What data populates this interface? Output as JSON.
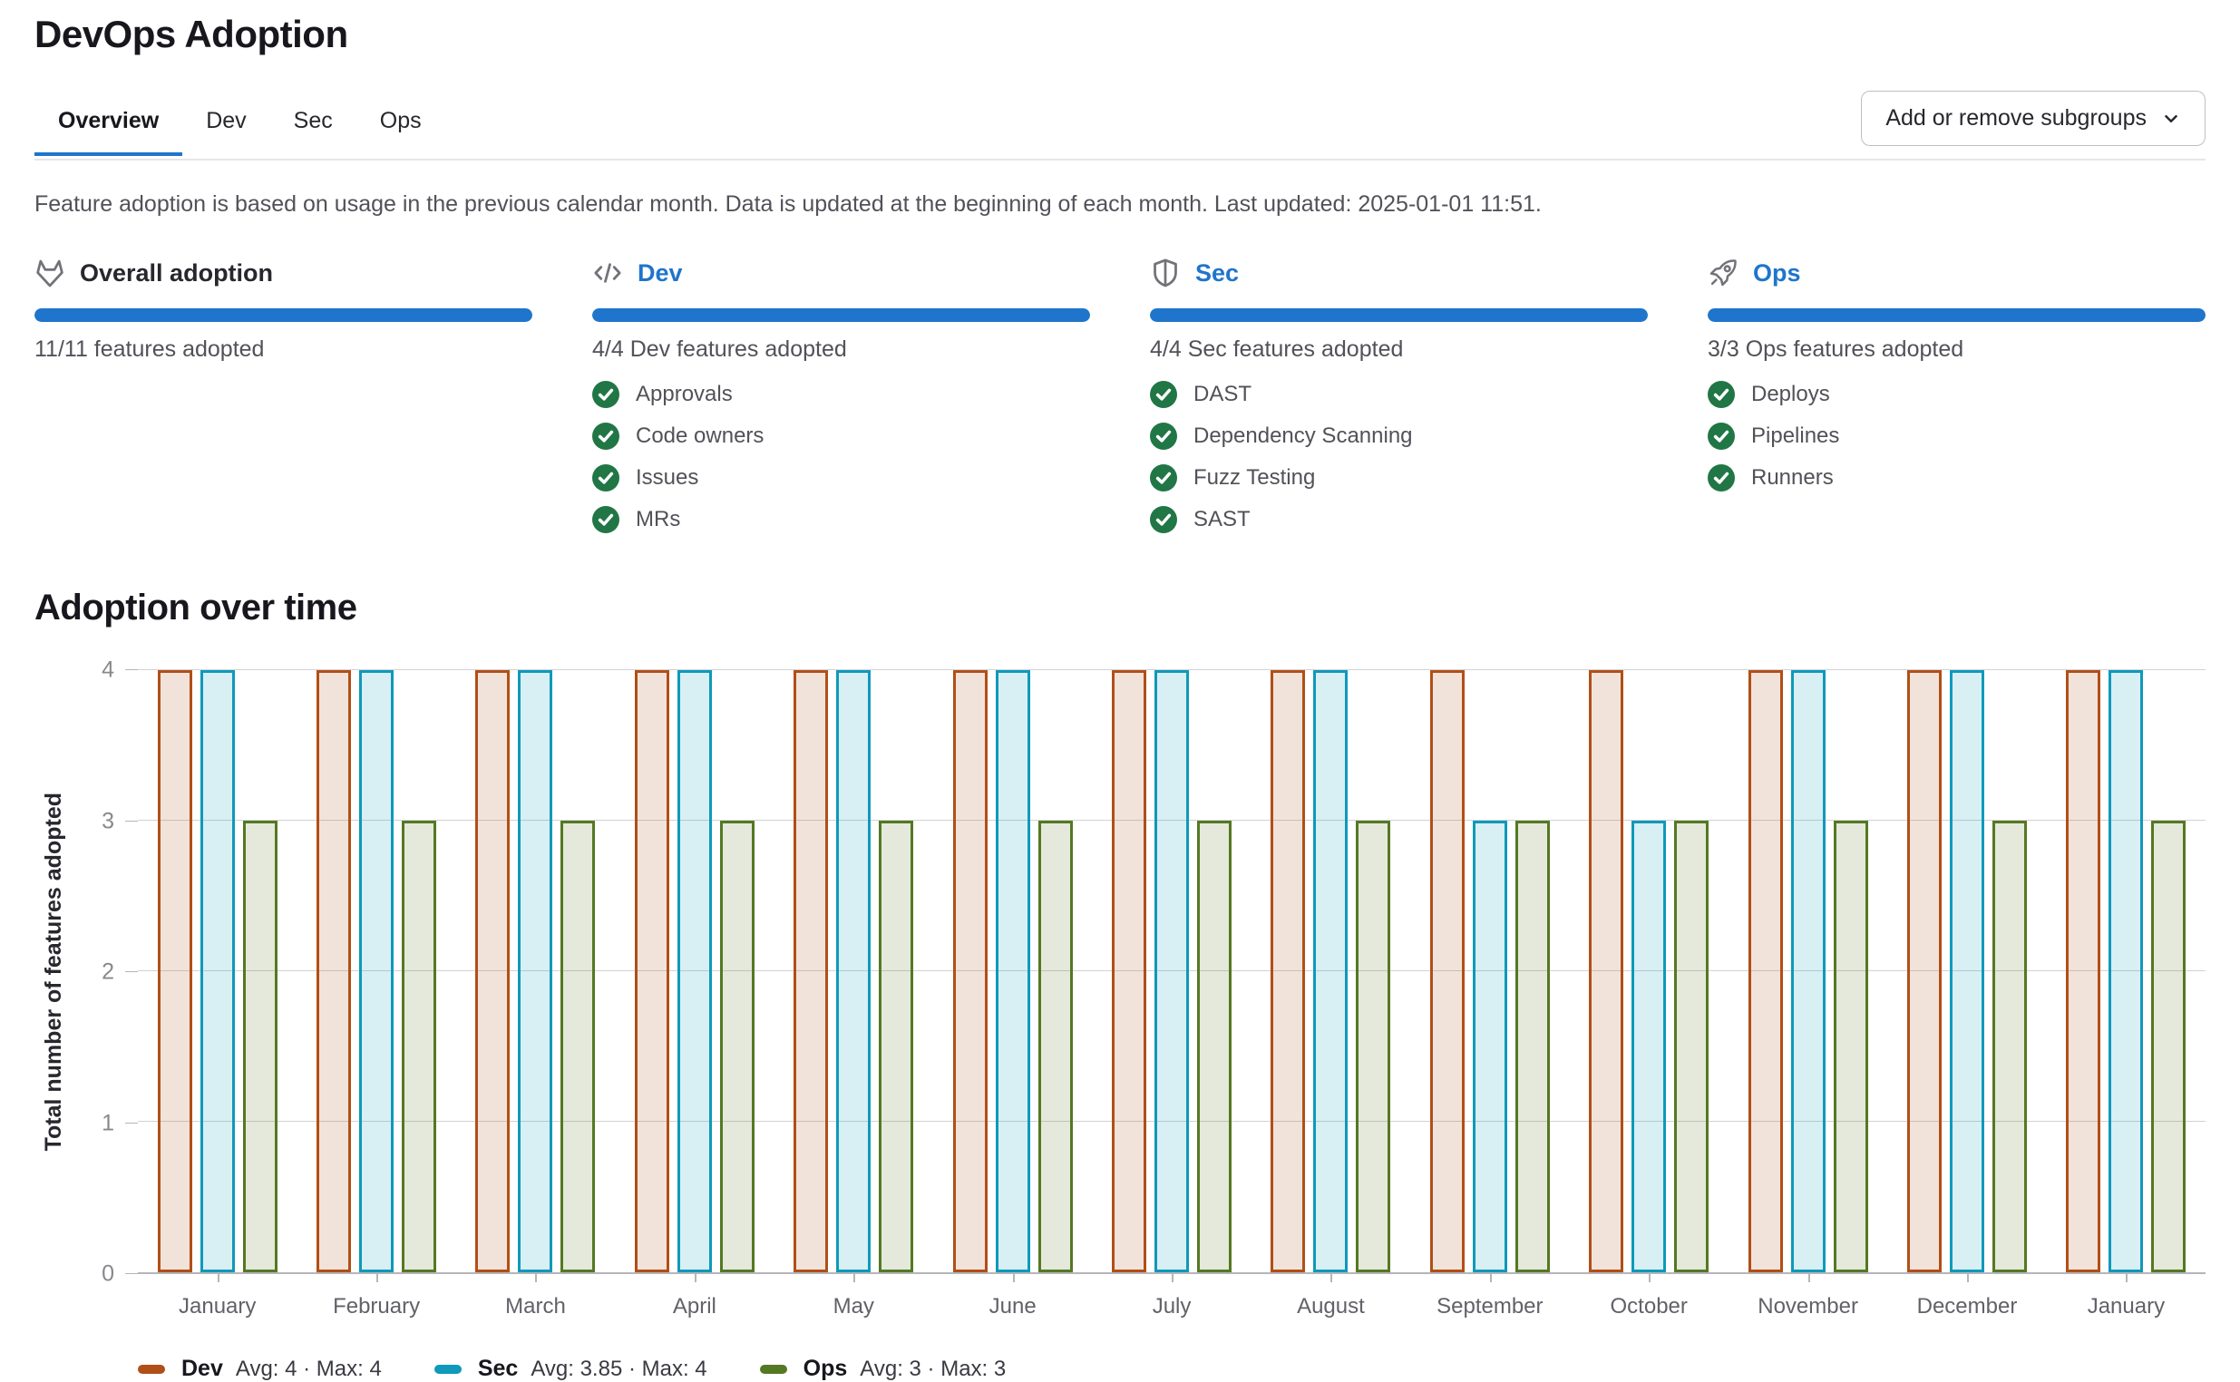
{
  "page": {
    "title": "DevOps Adoption"
  },
  "tabs": [
    {
      "label": "Overview",
      "active": true
    },
    {
      "label": "Dev",
      "active": false
    },
    {
      "label": "Sec",
      "active": false
    },
    {
      "label": "Ops",
      "active": false
    }
  ],
  "toolbar": {
    "subgroups_button": "Add or remove subgroups"
  },
  "description": {
    "text": "Feature adoption is based on usage in the previous calendar month. Data is updated at the beginning of each month. Last updated: 2025-01-01 11:51."
  },
  "cards": [
    {
      "icon": "tanuki-icon",
      "title": "Overall adoption",
      "link": false,
      "progress": 100,
      "summary": "11/11 features adopted",
      "features": []
    },
    {
      "icon": "code-icon",
      "title": "Dev",
      "link": true,
      "progress": 100,
      "summary": "4/4 Dev features adopted",
      "features": [
        "Approvals",
        "Code owners",
        "Issues",
        "MRs"
      ]
    },
    {
      "icon": "shield-icon",
      "title": "Sec",
      "link": true,
      "progress": 100,
      "summary": "4/4 Sec features adopted",
      "features": [
        "DAST",
        "Dependency Scanning",
        "Fuzz Testing",
        "SAST"
      ]
    },
    {
      "icon": "rocket-icon",
      "title": "Ops",
      "link": true,
      "progress": 100,
      "summary": "3/3 Ops features adopted",
      "features": [
        "Deploys",
        "Pipelines",
        "Runners"
      ]
    }
  ],
  "chart_section": {
    "title": "Adoption over time"
  },
  "chart_data": {
    "type": "bar",
    "title": "Adoption over time",
    "categories": [
      "January",
      "February",
      "March",
      "April",
      "May",
      "June",
      "July",
      "August",
      "September",
      "October",
      "November",
      "December",
      "January"
    ],
    "series": [
      {
        "name": "Dev",
        "color": "#b14f18",
        "fill": "rgba(177,79,24,0.16)",
        "values": [
          4,
          4,
          4,
          4,
          4,
          4,
          4,
          4,
          4,
          4,
          4,
          4,
          4
        ]
      },
      {
        "name": "Sec",
        "color": "#0f99ba",
        "fill": "rgba(15,153,186,0.16)",
        "values": [
          4,
          4,
          4,
          4,
          4,
          4,
          4,
          4,
          3,
          3,
          4,
          4,
          4
        ]
      },
      {
        "name": "Ops",
        "color": "#557822",
        "fill": "rgba(85,120,34,0.16)",
        "values": [
          3,
          3,
          3,
          3,
          3,
          3,
          3,
          3,
          3,
          3,
          3,
          3,
          3
        ]
      }
    ],
    "xlabel": "",
    "ylabel": "Total number of features adopted",
    "ylim": [
      0,
      4
    ],
    "yticks": [
      0,
      1,
      2,
      3,
      4
    ],
    "grid": true,
    "legend_position": "bottom",
    "legend": [
      {
        "name": "Dev",
        "stats": "Avg: 4 · Max: 4"
      },
      {
        "name": "Sec",
        "stats": "Avg: 3.85 · Max: 4"
      },
      {
        "name": "Ops",
        "stats": "Avg: 3 · Max: 3"
      }
    ]
  },
  "colors": {
    "accent_blue": "#1f75cb",
    "check_green": "#217645",
    "dev": "#b14f18",
    "sec": "#0f99ba",
    "ops": "#557822"
  }
}
